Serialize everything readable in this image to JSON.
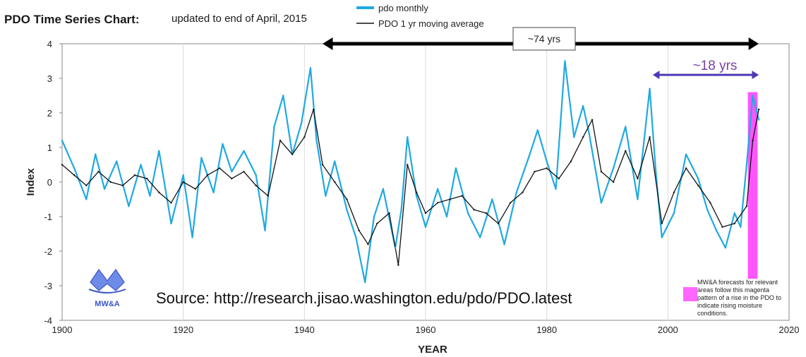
{
  "chart_data": {
    "type": "line",
    "title": "PDO Time Series Chart:",
    "subtitle": "updated to end of April, 2015",
    "xlabel": "YEAR",
    "ylabel": "Index",
    "xlim": [
      1900,
      2020
    ],
    "ylim": [
      -4,
      4
    ],
    "xticks": [
      "1900",
      "1920",
      "1940",
      "1960",
      "1980",
      "2000",
      "2020"
    ],
    "yticks": [
      "-4",
      "-3",
      "-2",
      "-1",
      "0",
      "1",
      "2",
      "3",
      "4"
    ],
    "grid": "vertical",
    "legend_position": "top",
    "series": [
      {
        "name": "pdo monthly",
        "color": "#1fa9e1",
        "x": [
          1900.0,
          1902.0,
          1904.0,
          1905.5,
          1907.0,
          1909.0,
          1911.0,
          1913.0,
          1914.5,
          1916.0,
          1918.0,
          1920.0,
          1921.5,
          1923.0,
          1925.0,
          1926.5,
          1928.0,
          1930.0,
          1932.0,
          1933.5,
          1935.0,
          1936.5,
          1938.0,
          1939.5,
          1941.0,
          1942.0,
          1943.5,
          1945.0,
          1947.0,
          1948.5,
          1950.0,
          1951.5,
          1953.0,
          1955.0,
          1956.0,
          1957.0,
          1958.5,
          1960.0,
          1962.0,
          1963.5,
          1965.0,
          1967.0,
          1969.0,
          1971.0,
          1973.0,
          1975.0,
          1977.0,
          1978.5,
          1980.0,
          1981.5,
          1983.0,
          1984.5,
          1986.0,
          1987.0,
          1989.0,
          1991.0,
          1993.0,
          1995.0,
          1997.0,
          1998.0,
          1999.0,
          2001.0,
          2003.0,
          2005.0,
          2006.5,
          2008.0,
          2009.5,
          2011.0,
          2012.0,
          2013.0,
          2014.0,
          2015.0
        ],
        "values": [
          1.2,
          0.4,
          -0.5,
          0.8,
          -0.2,
          0.6,
          -0.7,
          0.5,
          -0.4,
          0.9,
          -1.2,
          0.2,
          -1.6,
          0.7,
          -0.3,
          1.1,
          0.3,
          0.9,
          0.2,
          -1.4,
          1.6,
          2.5,
          0.8,
          1.7,
          3.3,
          1.2,
          -0.4,
          0.6,
          -0.8,
          -1.6,
          -2.9,
          -1.0,
          -0.2,
          -1.9,
          -0.8,
          1.3,
          -0.4,
          -1.3,
          -0.2,
          -1.0,
          0.4,
          -0.9,
          -1.6,
          -0.5,
          -1.8,
          -0.3,
          0.7,
          1.5,
          0.6,
          -0.2,
          3.5,
          1.3,
          2.2,
          1.4,
          -0.6,
          0.4,
          1.6,
          -0.5,
          2.7,
          0.3,
          -1.6,
          -0.9,
          0.8,
          0.1,
          -0.8,
          -1.4,
          -1.9,
          -0.9,
          -1.3,
          0.5,
          2.5,
          1.8
        ]
      },
      {
        "name": "PDO 1 yr moving average",
        "color": "#111111",
        "x": [
          1900.0,
          1902.0,
          1904.0,
          1906.0,
          1908.0,
          1910.0,
          1912.0,
          1914.0,
          1916.0,
          1918.0,
          1920.0,
          1922.0,
          1924.0,
          1926.0,
          1928.0,
          1930.0,
          1932.0,
          1934.0,
          1936.0,
          1938.0,
          1940.0,
          1941.5,
          1943.0,
          1945.0,
          1947.0,
          1949.0,
          1950.5,
          1952.0,
          1954.0,
          1955.5,
          1957.0,
          1958.5,
          1960.0,
          1962.0,
          1964.0,
          1966.0,
          1968.0,
          1970.0,
          1972.0,
          1974.0,
          1976.0,
          1978.0,
          1980.0,
          1982.0,
          1984.0,
          1986.0,
          1987.5,
          1989.0,
          1991.0,
          1993.0,
          1995.0,
          1997.0,
          1999.0,
          2001.0,
          2003.0,
          2005.0,
          2007.0,
          2009.0,
          2011.0,
          2013.0,
          2014.0,
          2015.0
        ],
        "values": [
          0.5,
          0.2,
          -0.1,
          0.3,
          0.0,
          -0.1,
          0.2,
          0.1,
          -0.3,
          -0.6,
          0.0,
          -0.2,
          0.2,
          0.4,
          0.1,
          0.3,
          -0.1,
          -0.4,
          1.2,
          0.8,
          1.3,
          2.1,
          0.5,
          0.0,
          -0.5,
          -1.4,
          -1.8,
          -1.2,
          -0.9,
          -2.4,
          0.5,
          -0.3,
          -0.9,
          -0.6,
          -0.5,
          -0.4,
          -0.8,
          -0.9,
          -1.2,
          -0.6,
          -0.3,
          0.3,
          0.4,
          0.1,
          0.6,
          1.3,
          1.8,
          0.3,
          0.0,
          0.9,
          0.1,
          1.3,
          -1.2,
          -0.3,
          0.4,
          -0.1,
          -0.6,
          -1.3,
          -1.2,
          -0.7,
          1.2,
          2.1
        ]
      }
    ],
    "annotations": {
      "span_74": {
        "label": "~74 yrs",
        "from": 1943,
        "to": 2015,
        "y": 4.0,
        "color": "#000000"
      },
      "span_18": {
        "label": "~18 yrs",
        "from": 1997.5,
        "to": 2015,
        "y": 3.1,
        "color": "#4b3ab5"
      },
      "forecast_band": {
        "from": 2013.2,
        "to": 2014.8,
        "y_from": -2.8,
        "y_to": 2.6,
        "color": "#ff55ff"
      },
      "source": "Source: http://research.jisao.washington.edu/pdo/PDO.latest",
      "note_lines": [
        "MW&A forecasts for relevant",
        "areas follow this magenta",
        "pattern of a rise in the PDO to",
        "indicate rising moisture",
        "conditions."
      ],
      "logo_text": "MW&A"
    }
  }
}
